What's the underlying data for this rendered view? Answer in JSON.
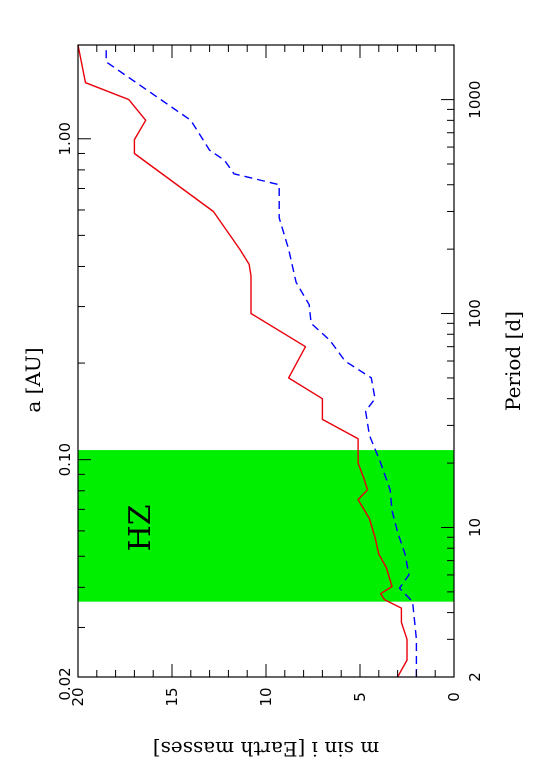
{
  "chart_data": {
    "type": "line",
    "orientation": "rotated 90 degrees clockwise",
    "xlabel": "Period [d]",
    "x2label": "a [AU]",
    "ylabel": "m sin i [Earth masses]",
    "x_scale": "log",
    "xlim": [
      2,
      1800
    ],
    "ylim": [
      0,
      20
    ],
    "x_ticks": [
      "2",
      "10",
      "100",
      "1000"
    ],
    "x2_ticks": [
      "0.02",
      "0.10",
      "1.00"
    ],
    "y_ticks": [
      "0",
      "5",
      "10",
      "15",
      "20"
    ],
    "series": [
      {
        "color": "#e8000b",
        "dash": "solid",
        "x": [
          2,
          2.4,
          3.0,
          3.6,
          4.2,
          4.6,
          4.9,
          5.3,
          6.5,
          7.5,
          9.0,
          11,
          13.5,
          15,
          17,
          20,
          26,
          32,
          40,
          50,
          70,
          100,
          150,
          170,
          200,
          300,
          560,
          650,
          800,
          1000,
          1200,
          1800
        ],
        "values": [
          3.0,
          2.5,
          2.5,
          2.8,
          2.8,
          3.7,
          3.9,
          3.3,
          3.6,
          4.0,
          4.2,
          4.5,
          5.1,
          4.6,
          4.8,
          5.1,
          5.1,
          7.0,
          7.0,
          8.8,
          7.9,
          10.8,
          10.8,
          10.9,
          11.4,
          12.8,
          17.0,
          17.0,
          16.4,
          17.3,
          19.6,
          20.0
        ]
      },
      {
        "color": "#0000ff",
        "dash": "dashed",
        "x": [
          2,
          3.0,
          4.5,
          5.2,
          6.0,
          7.5,
          9.5,
          12,
          15,
          20,
          27,
          35,
          40,
          50,
          60,
          75,
          90,
          110,
          140,
          200,
          280,
          400,
          450,
          520,
          580,
          800,
          1500,
          1800
        ],
        "values": [
          2.0,
          2.0,
          2.2,
          2.9,
          2.4,
          2.6,
          3.0,
          3.3,
          3.4,
          3.9,
          4.5,
          4.7,
          4.2,
          4.4,
          5.8,
          6.6,
          7.6,
          7.7,
          8.4,
          8.8,
          9.3,
          9.3,
          11.7,
          12.2,
          13.0,
          14.0,
          18.5,
          18.5
        ]
      }
    ],
    "shaded_region": {
      "label": "HZ",
      "color": "#00ee00",
      "x_range": [
        4.5,
        23
      ],
      "y_range": [
        0,
        20
      ]
    }
  }
}
